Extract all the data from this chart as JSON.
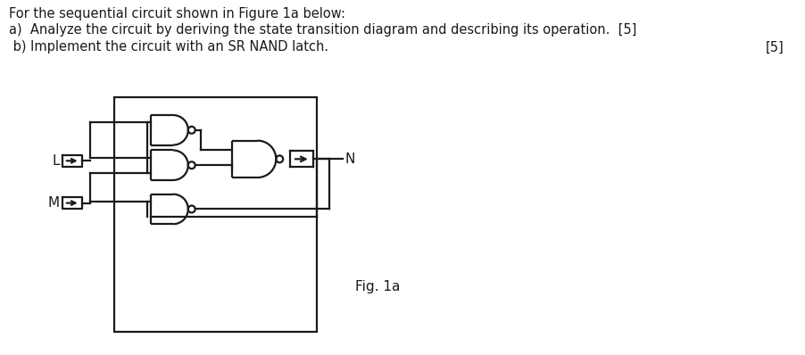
{
  "title_line": "For the sequential circuit shown in Figure 1a below:",
  "line_a": "a)  Analyze the circuit by deriving the state transition diagram and describing its operation.  [5]",
  "line_b": " b) Implement the circuit with an SR NAND latch.",
  "line_b_points": "[5]",
  "fig_label": "Fig. 1a",
  "label_L": "L",
  "label_M": "M",
  "label_N": "N",
  "bg_color": "#ffffff",
  "line_color": "#1a1a1a",
  "text_color": "#1a1a1a",
  "lw": 1.6
}
